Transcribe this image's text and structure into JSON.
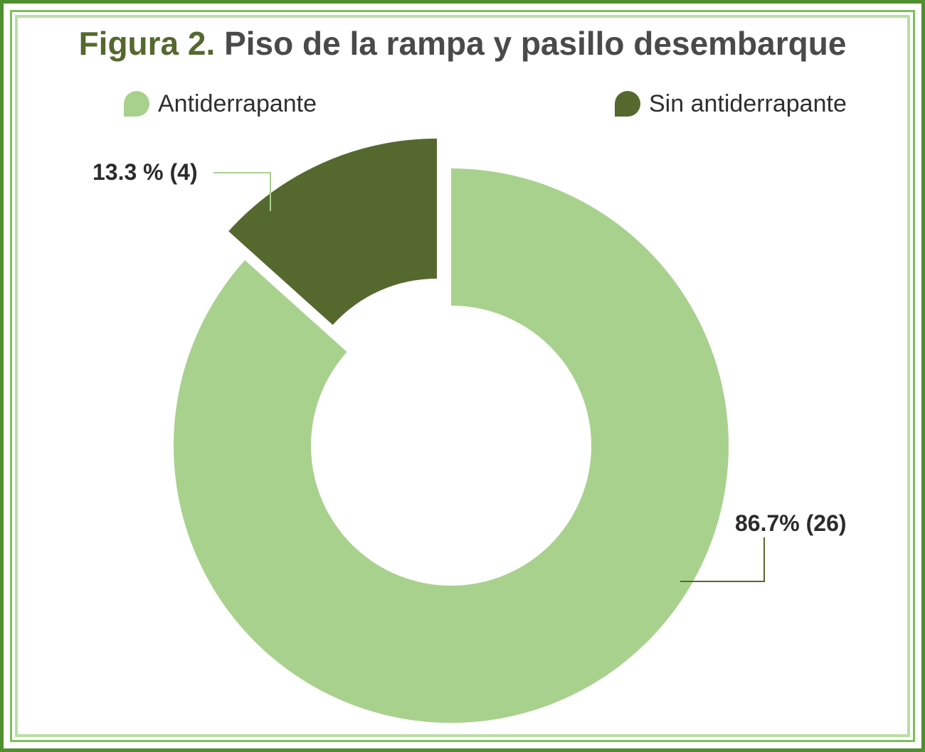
{
  "title": {
    "prefix": "Figura 2.",
    "text": "Piso de la rampa y pasillo desembarque"
  },
  "colors": {
    "border_outer": "#4f8f2f",
    "border_mid": "#7fbf5c",
    "border_inner": "#b9dea4",
    "title_prefix": "#54692e"
  },
  "chart_data": {
    "type": "pie",
    "donut": true,
    "title": "Figura 2. Piso de la rampa y pasillo desembarque",
    "legend_position": "top",
    "slices": [
      {
        "name": "Antiderrapante",
        "count": 26,
        "percent": 86.7,
        "label": "86.7% (26)",
        "color": "#a9d18e"
      },
      {
        "name": "Sin antiderrapante",
        "count": 4,
        "percent": 13.3,
        "label": "13.3 % (4)",
        "color": "#55692f"
      }
    ]
  }
}
